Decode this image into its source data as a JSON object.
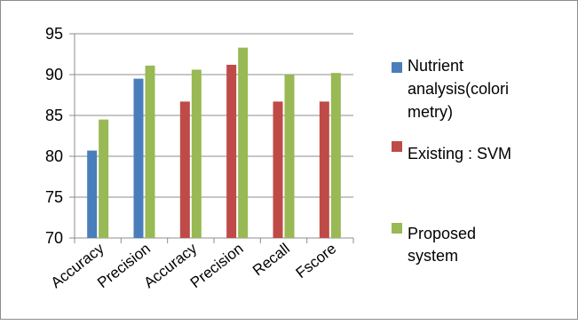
{
  "chart_data": {
    "type": "bar",
    "categories": [
      "Accuracy",
      "Precision",
      "Accuracy",
      "Precision",
      "Recall",
      "Fscore"
    ],
    "series": [
      {
        "name": "Nutrient analysis(colorimetry)",
        "legend_lines": [
          "Nutrient",
          "analysis(colori",
          "metry)"
        ],
        "color": "#4a7ebb",
        "values": [
          80.7,
          89.5,
          null,
          null,
          null,
          null
        ]
      },
      {
        "name": "Existing : SVM",
        "legend_lines": [
          "Existing : SVM"
        ],
        "color": "#be4b48",
        "values": [
          null,
          null,
          86.7,
          91.2,
          86.7,
          86.7
        ]
      },
      {
        "name": "Proposed system",
        "legend_lines": [
          "Proposed",
          "system"
        ],
        "color": "#98b954",
        "values": [
          84.5,
          91.1,
          90.6,
          93.3,
          90.0,
          90.2
        ]
      }
    ],
    "ylim": [
      70,
      95
    ],
    "yticks": [
      70,
      75,
      80,
      85,
      90,
      95
    ],
    "grid": true,
    "legend_position": "right"
  }
}
